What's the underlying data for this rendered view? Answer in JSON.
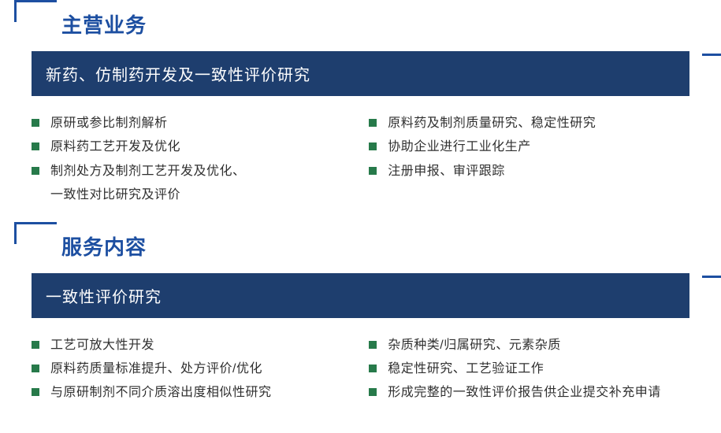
{
  "colors": {
    "bracket": "#1d4fa1",
    "title": "#1d4fa1",
    "banner_bg": "#1e3e6e",
    "banner_text": "#ffffff",
    "bullet_sq": "#277a4a",
    "body_text": "#303030",
    "page_bg": "#ffffff"
  },
  "section1": {
    "title": "主营业务",
    "banner": "新药、仿制药开发及一致性评价研究",
    "left": [
      "原研或参比制剂解析",
      "原料药工艺开发及优化",
      "制剂处方及制剂工艺开发及优化、"
    ],
    "left_cont": "一致性对比研究及评价",
    "right": [
      "原料药及制剂质量研究、稳定性研究",
      "协助企业进行工业化生产",
      "注册申报、审评跟踪"
    ]
  },
  "section2": {
    "title": "服务内容",
    "banner": "一致性评价研究",
    "left": [
      "工艺可放大性开发",
      "原料药质量标准提升、处方评价/优化",
      "与原研制剂不同介质溶出度相似性研究"
    ],
    "right": [
      "杂质种类/归属研究、元素杂质",
      "稳定性研究、工艺验证工作",
      "形成完整的一致性评价报告供企业提交补充申请"
    ]
  },
  "style": {
    "title_fontsize": 26,
    "banner_fontsize": 20,
    "bullet_fontsize": 16,
    "bracket_w": 54,
    "bracket_h": 28,
    "bracket_border": 3,
    "bullet_sq_size": 10
  }
}
